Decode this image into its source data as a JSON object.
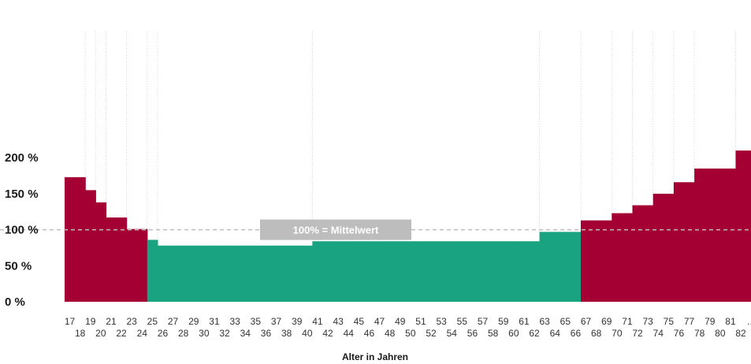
{
  "chart_data": {
    "type": "bar",
    "xlabel": "Alter in Jahren",
    "ylabel": "",
    "ylim": [
      0,
      200
    ],
    "y_ticks": [
      {
        "value": 0,
        "label": "0 %"
      },
      {
        "value": 50,
        "label": "50 %"
      },
      {
        "value": 100,
        "label": "100 %"
      },
      {
        "value": 150,
        "label": "150 %"
      },
      {
        "value": 200,
        "label": "200 %"
      }
    ],
    "reference_line": {
      "value": 100,
      "label": "100% = Mittelwert"
    },
    "colors": {
      "above_average": "#a50034",
      "below_average": "#1aa381",
      "reference": "#bdbdbd"
    },
    "categories": [
      "17",
      "18",
      "19",
      "20",
      "21",
      "22",
      "23",
      "24",
      "25",
      "26",
      "27",
      "28",
      "29",
      "30",
      "31",
      "32",
      "33",
      "34",
      "35",
      "36",
      "37",
      "38",
      "39",
      "40",
      "41",
      "42",
      "43",
      "44",
      "45",
      "46",
      "47",
      "48",
      "49",
      "50",
      "51",
      "52",
      "53",
      "54",
      "55",
      "56",
      "57",
      "58",
      "59",
      "60",
      "61",
      "62",
      "63",
      "64",
      "65",
      "66",
      "67",
      "68",
      "69",
      "70",
      "71",
      "72",
      "73",
      "74",
      "75",
      "76",
      "77",
      "78",
      "79",
      "80",
      "81",
      "82",
      "..."
    ],
    "values": [
      173,
      173,
      155,
      138,
      117,
      117,
      101,
      101,
      86,
      78,
      78,
      78,
      78,
      78,
      78,
      78,
      78,
      78,
      78,
      78,
      78,
      78,
      78,
      78,
      84,
      84,
      84,
      84,
      84,
      84,
      84,
      84,
      84,
      84,
      84,
      84,
      84,
      84,
      84,
      84,
      84,
      84,
      84,
      84,
      84,
      84,
      97,
      97,
      97,
      97,
      113,
      113,
      113,
      123,
      123,
      134,
      134,
      150,
      150,
      166,
      166,
      185,
      185,
      185,
      185,
      210,
      210
    ],
    "grid": false
  }
}
